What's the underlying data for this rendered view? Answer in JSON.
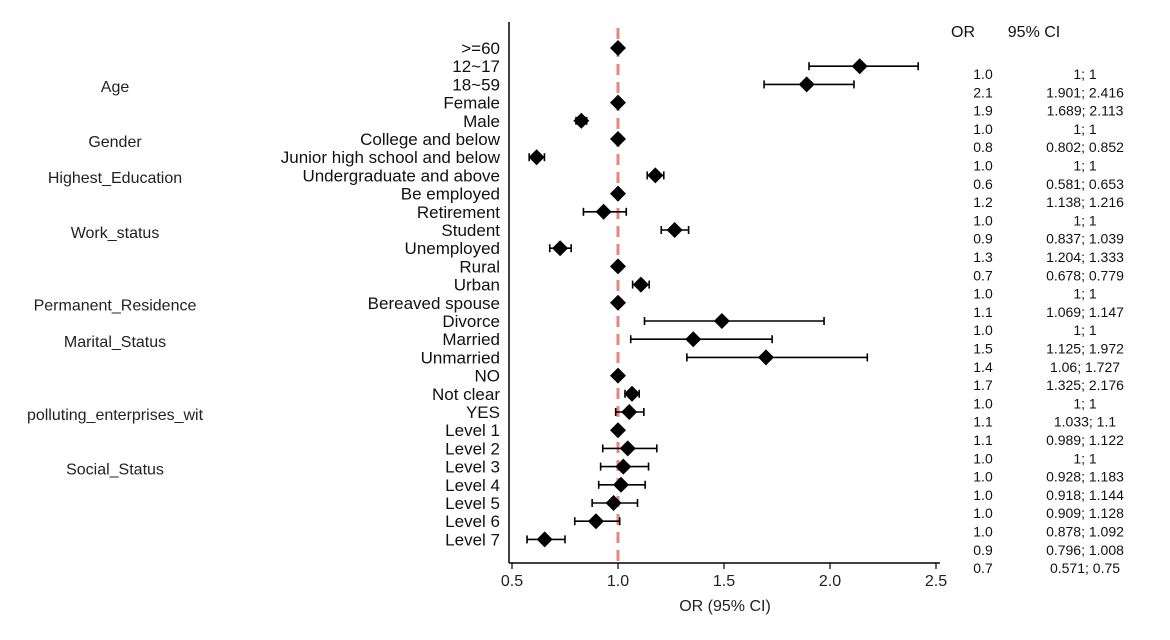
{
  "chart_data": {
    "type": "forest",
    "xlabel": "OR (95% CI)",
    "xlim": [
      0.5,
      2.5
    ],
    "xticks": [
      0.5,
      1.0,
      1.5,
      2.0,
      2.5
    ],
    "xtick_labels": [
      "0.5",
      "1.0",
      "1.5",
      "2.0",
      "2.5"
    ],
    "reference_line": 1.0,
    "reference_color": "#e8867a",
    "marker_color": "#000000",
    "table_headers": {
      "or": "OR",
      "ci": "95% CI"
    },
    "groups": [
      {
        "label": "Age",
        "anchor": 1
      },
      {
        "label": "Gender",
        "anchor": 4
      },
      {
        "label": "Highest_Education",
        "anchor": 6
      },
      {
        "label": "Work_status",
        "anchor": 9
      },
      {
        "label": "Permanent_Residence",
        "anchor": 13
      },
      {
        "label": "Marital_Status",
        "anchor": 15
      },
      {
        "label": "polluting_enterprises_wit",
        "anchor": 19
      },
      {
        "label": "Social_Status",
        "anchor": 22
      }
    ],
    "rows": [
      {
        "label": ">=60",
        "or": 1.0,
        "lo": 1.0,
        "hi": 1.0
      },
      {
        "label": "12~17",
        "or": 2.14,
        "lo": 1.901,
        "hi": 2.416
      },
      {
        "label": "18~59",
        "or": 1.89,
        "lo": 1.689,
        "hi": 2.113
      },
      {
        "label": "Female",
        "or": 1.0,
        "lo": 1.0,
        "hi": 1.0
      },
      {
        "label": "Male",
        "or": 0.827,
        "lo": 0.802,
        "hi": 0.852
      },
      {
        "label": "College and below",
        "or": 1.0,
        "lo": 1.0,
        "hi": 1.0
      },
      {
        "label": "Junior high school and below",
        "or": 0.616,
        "lo": 0.581,
        "hi": 0.653
      },
      {
        "label": "Undergraduate and above",
        "or": 1.176,
        "lo": 1.138,
        "hi": 1.216
      },
      {
        "label": "Be employed",
        "or": 1.0,
        "lo": 1.0,
        "hi": 1.0
      },
      {
        "label": "Retirement",
        "or": 0.932,
        "lo": 0.837,
        "hi": 1.039
      },
      {
        "label": "Student",
        "or": 1.267,
        "lo": 1.204,
        "hi": 1.333
      },
      {
        "label": "Unemployed",
        "or": 0.727,
        "lo": 0.678,
        "hi": 0.779
      },
      {
        "label": "Rural",
        "or": 1.0,
        "lo": 1.0,
        "hi": 1.0
      },
      {
        "label": "Urban",
        "or": 1.108,
        "lo": 1.069,
        "hi": 1.147
      },
      {
        "label": "Bereaved spouse",
        "or": 1.0,
        "lo": 1.0,
        "hi": 1.0
      },
      {
        "label": "Divorce",
        "or": 1.49,
        "lo": 1.125,
        "hi": 1.972
      },
      {
        "label": "Married",
        "or": 1.355,
        "lo": 1.06,
        "hi": 1.727
      },
      {
        "label": "Unmarried",
        "or": 1.698,
        "lo": 1.325,
        "hi": 2.176
      },
      {
        "label": "NO",
        "or": 1.0,
        "lo": 1.0,
        "hi": 1.0
      },
      {
        "label": "Not clear",
        "or": 1.066,
        "lo": 1.033,
        "hi": 1.1
      },
      {
        "label": "YES",
        "or": 1.053,
        "lo": 0.989,
        "hi": 1.122
      },
      {
        "label": "Level 1",
        "or": 1.0,
        "lo": 1.0,
        "hi": 1.0
      },
      {
        "label": "Level 2",
        "or": 1.046,
        "lo": 0.928,
        "hi": 1.183
      },
      {
        "label": "Level 3",
        "or": 1.025,
        "lo": 0.918,
        "hi": 1.144
      },
      {
        "label": "Level 4",
        "or": 1.014,
        "lo": 0.909,
        "hi": 1.128
      },
      {
        "label": "Level 5",
        "or": 0.979,
        "lo": 0.878,
        "hi": 1.092
      },
      {
        "label": "Level 6",
        "or": 0.896,
        "lo": 0.796,
        "hi": 1.008
      },
      {
        "label": "Level 7",
        "or": 0.654,
        "lo": 0.571,
        "hi": 0.75
      }
    ],
    "table_rows": [
      {
        "or": "1.0",
        "ci": "1; 1"
      },
      {
        "or": "2.1",
        "ci": "1.901; 2.416"
      },
      {
        "or": "1.9",
        "ci": "1.689; 2.113"
      },
      {
        "or": "1.0",
        "ci": "1; 1"
      },
      {
        "or": "0.8",
        "ci": "0.802; 0.852"
      },
      {
        "or": "1.0",
        "ci": "1; 1"
      },
      {
        "or": "0.6",
        "ci": "0.581; 0.653"
      },
      {
        "or": "1.2",
        "ci": "1.138; 1.216"
      },
      {
        "or": "1.0",
        "ci": "1; 1"
      },
      {
        "or": "0.9",
        "ci": "0.837; 1.039"
      },
      {
        "or": "1.3",
        "ci": "1.204; 1.333"
      },
      {
        "or": "0.7",
        "ci": "0.678; 0.779"
      },
      {
        "or": "1.0",
        "ci": "1; 1"
      },
      {
        "or": "1.1",
        "ci": "1.069; 1.147"
      },
      {
        "or": "1.0",
        "ci": "1; 1"
      },
      {
        "or": "1.5",
        "ci": "1.125; 1.972"
      },
      {
        "or": "1.4",
        "ci": "1.06; 1.727"
      },
      {
        "or": "1.7",
        "ci": "1.325; 2.176"
      },
      {
        "or": "1.0",
        "ci": "1; 1"
      },
      {
        "or": "1.1",
        "ci": "1.033; 1.1"
      },
      {
        "or": "1.1",
        "ci": "0.989; 1.122"
      },
      {
        "or": "1.0",
        "ci": "1; 1"
      },
      {
        "or": "1.0",
        "ci": "0.928; 1.183"
      },
      {
        "or": "1.0",
        "ci": "0.918; 1.144"
      },
      {
        "or": "1.0",
        "ci": "0.909; 1.128"
      },
      {
        "or": "1.0",
        "ci": "0.878; 1.092"
      },
      {
        "or": "0.9",
        "ci": "0.796; 1.008"
      },
      {
        "or": "0.7",
        "ci": "0.571; 0.75"
      }
    ]
  }
}
